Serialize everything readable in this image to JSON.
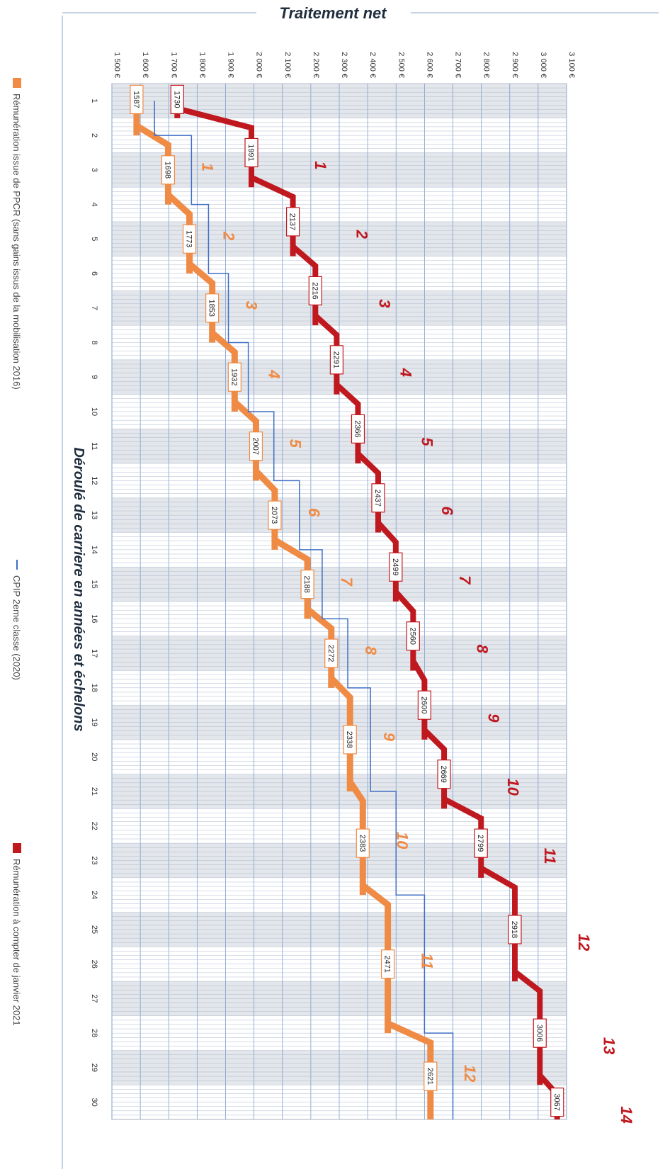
{
  "chart_data": {
    "type": "line",
    "title": "Traitement net",
    "xlabel": "Déroulé de carriere en années et échelons",
    "ylabel": "",
    "xlim": [
      0.5,
      30.5
    ],
    "ylim": [
      1500,
      3100
    ],
    "x_ticks": [
      1,
      2,
      3,
      4,
      5,
      6,
      7,
      8,
      9,
      10,
      11,
      12,
      13,
      14,
      15,
      16,
      17,
      18,
      19,
      20,
      21,
      22,
      23,
      24,
      25,
      26,
      27,
      28,
      29,
      30
    ],
    "y_ticks": [
      "1 500 €",
      "1 600 €",
      "1 700 €",
      "1 800 €",
      "1 900 €",
      "2 000 €",
      "2 100 €",
      "2 200 €",
      "2 300 €",
      "2 400 €",
      "2 500 €",
      "2 600 €",
      "2 700 €",
      "2 800 €",
      "2 900 €",
      "3 000 €",
      "3 100 €"
    ],
    "y_tick_values": [
      1500,
      1600,
      1700,
      1800,
      1900,
      2000,
      2100,
      2200,
      2300,
      2400,
      2500,
      2600,
      2700,
      2800,
      2900,
      3000,
      3100
    ],
    "grid": true,
    "legend_position": "bottom",
    "series": [
      {
        "name": "Rémunération issue de PPCR (sans gains issus de la mobilisation 2016)",
        "color": "#ef8b45",
        "steps": [
          {
            "start": 1,
            "end": 2,
            "value": 1587,
            "label": "1587",
            "echelon": ""
          },
          {
            "start": 2,
            "end": 4,
            "value": 1698,
            "label": "1698",
            "echelon": "1"
          },
          {
            "start": 4,
            "end": 6,
            "value": 1773,
            "label": "1773",
            "echelon": "2"
          },
          {
            "start": 6,
            "end": 8,
            "value": 1853,
            "label": "1853",
            "echelon": "3"
          },
          {
            "start": 8,
            "end": 10,
            "value": 1932,
            "label": "1932",
            "echelon": "4"
          },
          {
            "start": 10,
            "end": 12,
            "value": 2007,
            "label": "2007",
            "echelon": "5"
          },
          {
            "start": 12,
            "end": 14,
            "value": 2073,
            "label": "2073",
            "echelon": "6"
          },
          {
            "start": 14,
            "end": 16,
            "value": 2188,
            "label": "2188",
            "echelon": "7"
          },
          {
            "start": 16,
            "end": 18,
            "value": 2272,
            "label": "2272",
            "echelon": "8"
          },
          {
            "start": 18,
            "end": 21,
            "value": 2338,
            "label": "2338",
            "echelon": "9"
          },
          {
            "start": 21,
            "end": 24,
            "value": 2383,
            "label": "2383",
            "echelon": "10"
          },
          {
            "start": 24,
            "end": 28,
            "value": 2471,
            "label": "2471",
            "echelon": "11"
          },
          {
            "start": 28,
            "end": 30.5,
            "value": 2621,
            "label": "2621",
            "echelon": "12"
          }
        ]
      },
      {
        "name": "CPIP 2eme classe (2020)",
        "color": "#3f6fc4",
        "steps": [
          {
            "start": 1,
            "end": 2,
            "value": 1650
          },
          {
            "start": 2,
            "end": 4,
            "value": 1780
          },
          {
            "start": 4,
            "end": 6,
            "value": 1840
          },
          {
            "start": 6,
            "end": 8,
            "value": 1910
          },
          {
            "start": 8,
            "end": 10,
            "value": 1980
          },
          {
            "start": 10,
            "end": 12,
            "value": 2070
          },
          {
            "start": 12,
            "end": 14,
            "value": 2160
          },
          {
            "start": 14,
            "end": 16,
            "value": 2240
          },
          {
            "start": 16,
            "end": 18,
            "value": 2330
          },
          {
            "start": 18,
            "end": 21,
            "value": 2410
          },
          {
            "start": 21,
            "end": 24,
            "value": 2500
          },
          {
            "start": 24,
            "end": 28,
            "value": 2600
          },
          {
            "start": 28,
            "end": 30.5,
            "value": 2700
          }
        ]
      },
      {
        "name": "Rémunération à compter de janvier 2021",
        "color": "#c0181f",
        "steps": [
          {
            "start": 1,
            "end": 1.5,
            "value": 1730,
            "label": "1730",
            "echelon": ""
          },
          {
            "start": 1.5,
            "end": 3.5,
            "value": 1991,
            "label": "1991",
            "echelon": "1"
          },
          {
            "start": 3.5,
            "end": 5.5,
            "value": 2137,
            "label": "2137",
            "echelon": "2"
          },
          {
            "start": 5.5,
            "end": 7.5,
            "value": 2216,
            "label": "2216",
            "echelon": "3"
          },
          {
            "start": 7.5,
            "end": 9.5,
            "value": 2291,
            "label": "2291",
            "echelon": "4"
          },
          {
            "start": 9.5,
            "end": 11.5,
            "value": 2366,
            "label": "2366",
            "echelon": "5"
          },
          {
            "start": 11.5,
            "end": 13.5,
            "value": 2437,
            "label": "2437",
            "echelon": "6"
          },
          {
            "start": 13.5,
            "end": 15.5,
            "value": 2499,
            "label": "2499",
            "echelon": "7"
          },
          {
            "start": 15.5,
            "end": 17.5,
            "value": 2560,
            "label": "2560",
            "echelon": "8"
          },
          {
            "start": 17.5,
            "end": 19.5,
            "value": 2600,
            "label": "2600",
            "echelon": "9"
          },
          {
            "start": 19.5,
            "end": 21.5,
            "value": 2669,
            "label": "2669",
            "echelon": "10"
          },
          {
            "start": 21.5,
            "end": 23.5,
            "value": 2799,
            "label": "2799",
            "echelon": "11"
          },
          {
            "start": 23.5,
            "end": 26.5,
            "value": 2918,
            "label": "2918",
            "echelon": "12"
          },
          {
            "start": 26.5,
            "end": 29.5,
            "value": 3006,
            "label": "3006",
            "echelon": "13"
          },
          {
            "start": 29.5,
            "end": 30.5,
            "value": 3067,
            "label": "3067",
            "echelon": "14"
          }
        ]
      }
    ]
  }
}
